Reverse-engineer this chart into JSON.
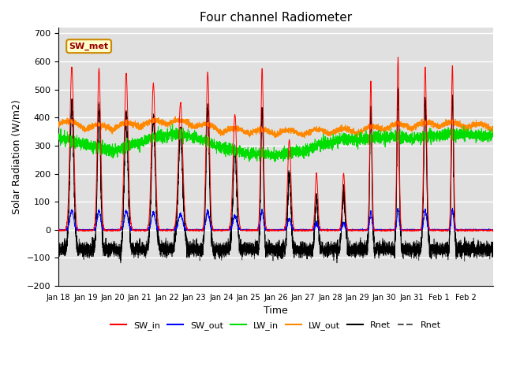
{
  "title": "Four channel Radiometer",
  "xlabel": "Time",
  "ylabel": "Solar Radiation (W/m2)",
  "ylim": [
    -200,
    720
  ],
  "yticks": [
    -200,
    -100,
    0,
    100,
    200,
    300,
    400,
    500,
    600,
    700
  ],
  "date_labels": [
    "Jan 18",
    "Jan 19",
    "Jan 20",
    "Jan 21",
    "Jan 22",
    "Jan 23",
    "Jan 24",
    "Jan 25",
    "Jan 26",
    "Jan 27",
    "Jan 28",
    "Jan 29",
    "Jan 30",
    "Jan 31",
    "Feb 1",
    "Feb 2"
  ],
  "annotation_text": "SW_met",
  "colors": {
    "SW_in": "#ff0000",
    "SW_out": "#0000ff",
    "LW_in": "#00dd00",
    "LW_out": "#ff8800",
    "Rnet_black": "#000000",
    "Rnet_dark": "#555555"
  },
  "background_color": "#e0e0e0",
  "grid_color": "#ffffff",
  "figsize": [
    6.4,
    4.8
  ],
  "dpi": 100,
  "peaks_SW_in": [
    580,
    575,
    555,
    520,
    450,
    560,
    410,
    575,
    320,
    200,
    200,
    530,
    610,
    580,
    585,
    0
  ],
  "peak_widths": [
    0.07,
    0.06,
    0.07,
    0.07,
    0.08,
    0.06,
    0.07,
    0.05,
    0.06,
    0.05,
    0.05,
    0.04,
    0.04,
    0.05,
    0.04,
    0.0
  ],
  "night_rnet": -70
}
